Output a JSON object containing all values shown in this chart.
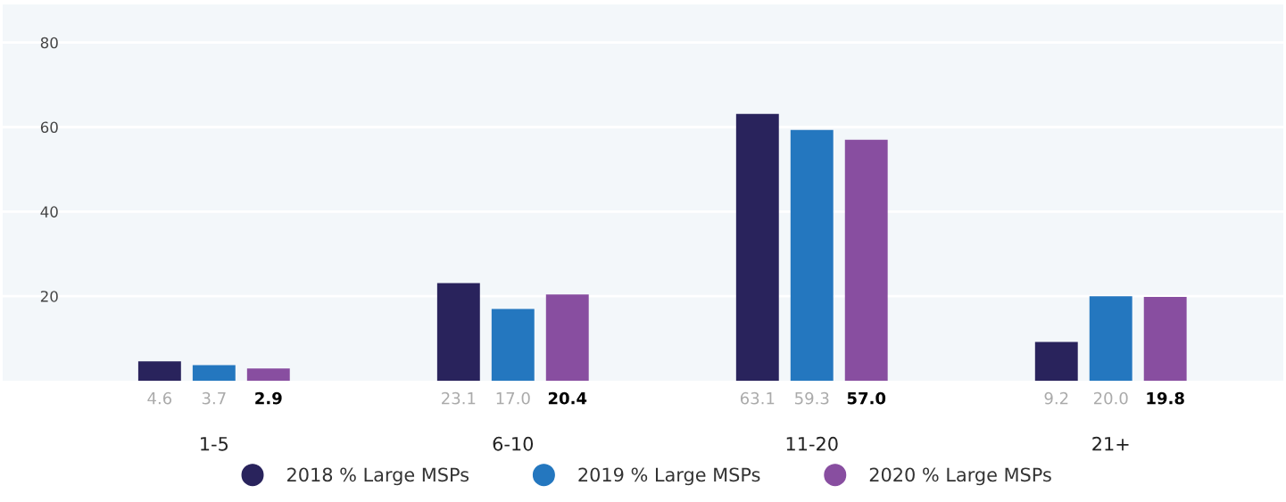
{
  "chart_data": {
    "type": "bar",
    "categories": [
      "1-5",
      "6-10",
      "11-20",
      "21+"
    ],
    "series": [
      {
        "name": "2018 % Large MSPs",
        "color": "#29235c",
        "values": [
          4.6,
          23.1,
          63.1,
          9.2
        ]
      },
      {
        "name": "2019 % Large MSPs",
        "color": "#2477bf",
        "values": [
          3.7,
          17.0,
          59.3,
          20.0
        ]
      },
      {
        "name": "2020 % Large MSPs",
        "color": "#884ea0",
        "values": [
          2.9,
          20.4,
          57.0,
          19.8
        ]
      }
    ],
    "value_labels": [
      [
        "4.6",
        "23.1",
        "63.1",
        "9.2"
      ],
      [
        "3.7",
        "17.0",
        "59.3",
        "20.0"
      ],
      [
        "2.9",
        "20.4",
        "57.0",
        "19.8"
      ]
    ],
    "ylim": [
      0,
      89
    ],
    "yticks": [
      20,
      40,
      60,
      80
    ],
    "grid": "y",
    "legend": "bottom"
  }
}
